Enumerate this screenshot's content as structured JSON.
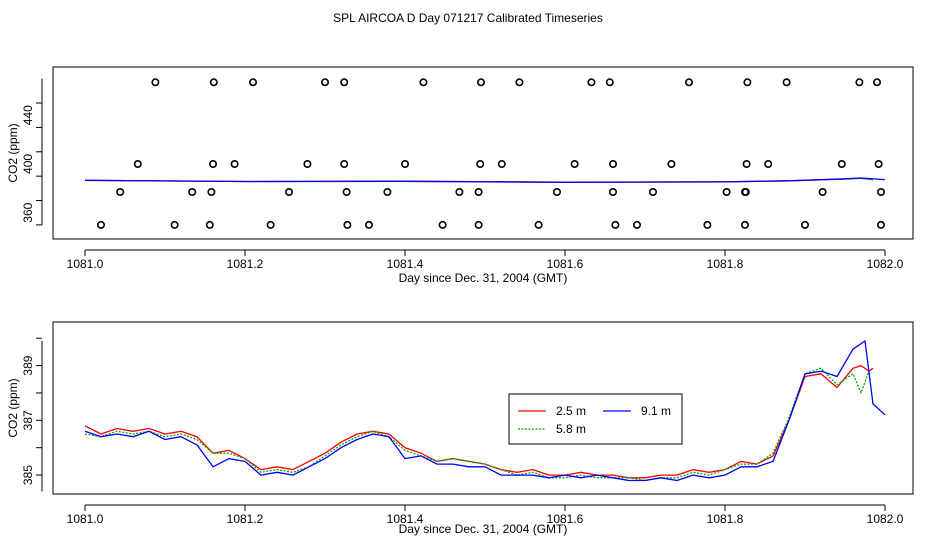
{
  "title": "SPL AIRCOA D  Day 071217  Calibrated Timeseries",
  "chart_data": [
    {
      "type": "scatter",
      "xlabel": "Day since Dec. 31, 2004 (GMT)",
      "ylabel": "CO2 (ppm)",
      "xlim": [
        1081.0,
        1082.0
      ],
      "ylim": [
        345,
        473
      ],
      "xticks": [
        "1081.0",
        "1081.2",
        "1081.4",
        "1081.6",
        "1081.8",
        "1082.0"
      ],
      "yticks": [
        "360",
        "400",
        "440"
      ],
      "ytick_values": [
        360,
        400,
        440
      ],
      "marker_series": {
        "name": "calibration points",
        "points": [
          [
            1081.02,
            350
          ],
          [
            1081.112,
            350
          ],
          [
            1081.156,
            350
          ],
          [
            1081.232,
            350
          ],
          [
            1081.328,
            350
          ],
          [
            1081.355,
            350
          ],
          [
            1081.447,
            350
          ],
          [
            1081.492,
            350
          ],
          [
            1081.567,
            350
          ],
          [
            1081.663,
            350
          ],
          [
            1081.69,
            350
          ],
          [
            1081.778,
            350
          ],
          [
            1081.825,
            350
          ],
          [
            1081.9,
            350
          ],
          [
            1081.995,
            350
          ],
          [
            1081.044,
            377
          ],
          [
            1081.134,
            377
          ],
          [
            1081.158,
            377
          ],
          [
            1081.255,
            377
          ],
          [
            1081.327,
            377
          ],
          [
            1081.378,
            377
          ],
          [
            1081.468,
            377
          ],
          [
            1081.492,
            377
          ],
          [
            1081.59,
            377
          ],
          [
            1081.66,
            377
          ],
          [
            1081.71,
            377
          ],
          [
            1081.802,
            377
          ],
          [
            1081.825,
            377
          ],
          [
            1081.826,
            377
          ],
          [
            1081.922,
            377
          ],
          [
            1081.995,
            377
          ],
          [
            1081.066,
            400
          ],
          [
            1081.16,
            400
          ],
          [
            1081.187,
            400
          ],
          [
            1081.278,
            400
          ],
          [
            1081.324,
            400
          ],
          [
            1081.4,
            400
          ],
          [
            1081.494,
            400
          ],
          [
            1081.521,
            400
          ],
          [
            1081.612,
            400
          ],
          [
            1081.66,
            400
          ],
          [
            1081.733,
            400
          ],
          [
            1081.827,
            400
          ],
          [
            1081.854,
            400
          ],
          [
            1081.946,
            400
          ],
          [
            1081.992,
            400
          ],
          [
            1081.088,
            467
          ],
          [
            1081.161,
            467
          ],
          [
            1081.21,
            467
          ],
          [
            1081.3,
            467
          ],
          [
            1081.324,
            467
          ],
          [
            1081.423,
            467
          ],
          [
            1081.495,
            467
          ],
          [
            1081.543,
            467
          ],
          [
            1081.633,
            467
          ],
          [
            1081.656,
            467
          ],
          [
            1081.755,
            467
          ],
          [
            1081.828,
            467
          ],
          [
            1081.877,
            467
          ],
          [
            1081.968,
            467
          ],
          [
            1081.99,
            467
          ]
        ]
      },
      "series": [
        {
          "name": "2.5 m",
          "color": "#ff0000",
          "x": [
            1081.0,
            1081.2,
            1081.4,
            1081.6,
            1081.8,
            1081.88,
            1081.95,
            1081.97,
            1081.985
          ],
          "y": [
            386.6,
            385.6,
            385.8,
            385.1,
            385.4,
            386.2,
            387.7,
            388.3,
            387.2
          ]
        },
        {
          "name": "5.8 m",
          "color": "#00aa00",
          "x": [
            1081.0,
            1081.2,
            1081.4,
            1081.6,
            1081.8,
            1081.88,
            1081.95,
            1081.97,
            1081.985
          ],
          "y": [
            386.5,
            385.5,
            385.7,
            385.0,
            385.3,
            386.1,
            387.6,
            388.2,
            387.1
          ]
        },
        {
          "name": "9.1 m",
          "color": "#0000ff",
          "x": [
            1081.0,
            1081.2,
            1081.4,
            1081.6,
            1081.8,
            1081.88,
            1081.95,
            1081.97,
            1082.0
          ],
          "y": [
            386.6,
            385.6,
            385.8,
            385.0,
            385.3,
            386.2,
            387.8,
            388.5,
            387.2
          ]
        }
      ]
    },
    {
      "type": "line",
      "xlabel": "Day since Dec. 31, 2004 (GMT)",
      "ylabel": "CO2 (ppm)",
      "xlim": [
        1081.0,
        1082.0
      ],
      "ylim": [
        384.6,
        390.3
      ],
      "xticks": [
        "1081.0",
        "1081.2",
        "1081.4",
        "1081.6",
        "1081.8",
        "1082.0"
      ],
      "yticks": [
        "385",
        "387",
        "389"
      ],
      "ytick_values": [
        385,
        387,
        389
      ],
      "legend_position": "center-right",
      "series": [
        {
          "name": "2.5 m",
          "color": "#ff0000",
          "x": [
            1081.0,
            1081.02,
            1081.04,
            1081.06,
            1081.08,
            1081.1,
            1081.12,
            1081.14,
            1081.16,
            1081.18,
            1081.2,
            1081.22,
            1081.24,
            1081.26,
            1081.28,
            1081.3,
            1081.32,
            1081.34,
            1081.36,
            1081.38,
            1081.4,
            1081.42,
            1081.44,
            1081.46,
            1081.48,
            1081.5,
            1081.52,
            1081.54,
            1081.56,
            1081.58,
            1081.6,
            1081.62,
            1081.64,
            1081.66,
            1081.68,
            1081.7,
            1081.72,
            1081.74,
            1081.76,
            1081.78,
            1081.8,
            1081.82,
            1081.84,
            1081.86,
            1081.88,
            1081.9,
            1081.92,
            1081.94,
            1081.96,
            1081.97,
            1081.98,
            1081.985
          ],
          "y": [
            386.8,
            386.5,
            386.7,
            386.6,
            386.7,
            386.5,
            386.6,
            386.4,
            385.8,
            385.9,
            385.6,
            385.2,
            385.3,
            385.2,
            385.5,
            385.8,
            386.2,
            386.5,
            386.6,
            386.5,
            386.0,
            385.8,
            385.5,
            385.6,
            385.5,
            385.4,
            385.2,
            385.1,
            385.2,
            385.0,
            385.0,
            385.1,
            385.0,
            385.0,
            384.9,
            384.9,
            385.0,
            385.0,
            385.2,
            385.1,
            385.2,
            385.5,
            385.4,
            385.7,
            387.0,
            388.6,
            388.7,
            388.2,
            388.9,
            389.0,
            388.8,
            388.9
          ]
        },
        {
          "name": "5.8 m",
          "color": "#00aa00",
          "x": [
            1081.0,
            1081.02,
            1081.04,
            1081.06,
            1081.08,
            1081.1,
            1081.12,
            1081.14,
            1081.16,
            1081.18,
            1081.2,
            1081.22,
            1081.24,
            1081.26,
            1081.28,
            1081.3,
            1081.32,
            1081.34,
            1081.36,
            1081.38,
            1081.4,
            1081.42,
            1081.44,
            1081.46,
            1081.48,
            1081.5,
            1081.52,
            1081.54,
            1081.56,
            1081.58,
            1081.6,
            1081.62,
            1081.64,
            1081.66,
            1081.68,
            1081.7,
            1081.72,
            1081.74,
            1081.76,
            1081.78,
            1081.8,
            1081.82,
            1081.84,
            1081.86,
            1081.88,
            1081.9,
            1081.92,
            1081.94,
            1081.96,
            1081.97,
            1081.98
          ],
          "y": [
            386.5,
            386.4,
            386.6,
            386.5,
            386.6,
            386.4,
            386.5,
            386.3,
            385.8,
            385.8,
            385.6,
            385.1,
            385.2,
            385.1,
            385.3,
            385.7,
            386.1,
            386.4,
            386.6,
            386.4,
            385.9,
            385.7,
            385.5,
            385.6,
            385.5,
            385.4,
            385.2,
            385.0,
            385.1,
            384.9,
            384.9,
            385.0,
            384.9,
            384.9,
            384.9,
            384.8,
            384.9,
            384.9,
            385.1,
            385.0,
            385.2,
            385.4,
            385.4,
            385.8,
            387.1,
            388.7,
            388.9,
            388.3,
            388.7,
            388.0,
            388.8
          ]
        },
        {
          "name": "9.1 m",
          "color": "#0000ff",
          "x": [
            1081.0,
            1081.02,
            1081.04,
            1081.06,
            1081.08,
            1081.1,
            1081.12,
            1081.14,
            1081.16,
            1081.18,
            1081.2,
            1081.22,
            1081.24,
            1081.26,
            1081.28,
            1081.3,
            1081.32,
            1081.34,
            1081.36,
            1081.38,
            1081.4,
            1081.42,
            1081.44,
            1081.46,
            1081.48,
            1081.5,
            1081.52,
            1081.54,
            1081.56,
            1081.58,
            1081.6,
            1081.62,
            1081.64,
            1081.66,
            1081.68,
            1081.7,
            1081.72,
            1081.74,
            1081.76,
            1081.78,
            1081.8,
            1081.82,
            1081.84,
            1081.86,
            1081.88,
            1081.9,
            1081.92,
            1081.94,
            1081.96,
            1081.975,
            1081.985,
            1082.0
          ],
          "y": [
            386.6,
            386.4,
            386.5,
            386.4,
            386.6,
            386.3,
            386.4,
            386.1,
            385.3,
            385.6,
            385.5,
            385.0,
            385.1,
            385.0,
            385.3,
            385.6,
            386.0,
            386.3,
            386.5,
            386.4,
            385.6,
            385.7,
            385.4,
            385.4,
            385.3,
            385.3,
            385.0,
            385.0,
            385.0,
            384.9,
            385.0,
            384.9,
            385.0,
            384.9,
            384.8,
            384.8,
            384.9,
            384.8,
            385.0,
            384.9,
            385.0,
            385.3,
            385.3,
            385.5,
            387.0,
            388.7,
            388.8,
            388.6,
            389.6,
            389.9,
            387.6,
            387.2
          ]
        }
      ]
    }
  ]
}
